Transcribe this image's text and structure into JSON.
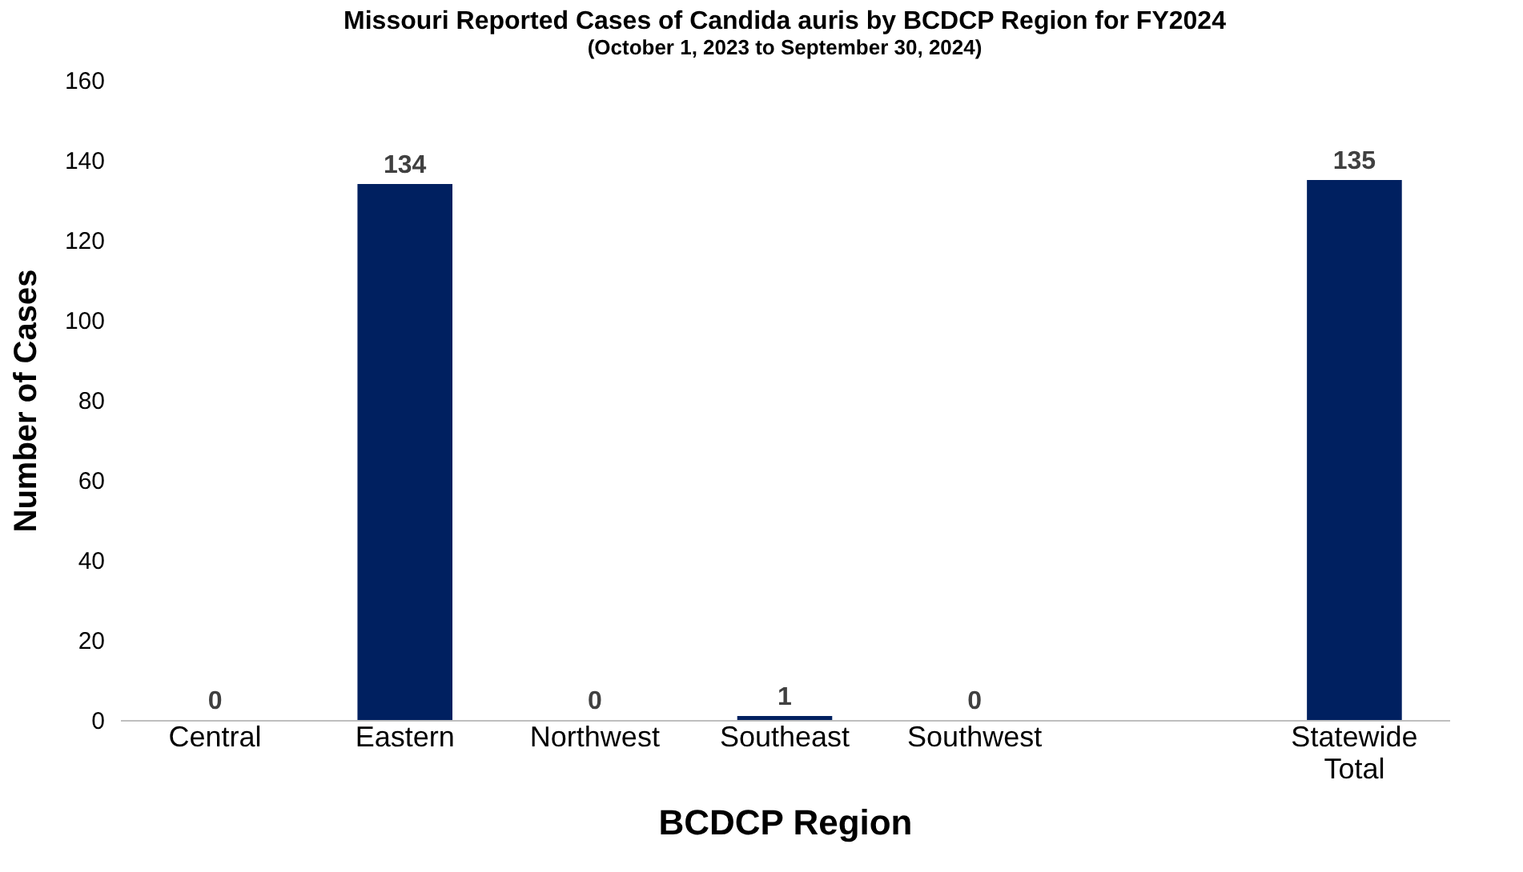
{
  "chart_data": {
    "type": "bar",
    "title": "Missouri Reported Cases of Candida auris by BCDCP Region for FY2024",
    "subtitle": "(October 1, 2023 to September 30, 2024)",
    "xlabel": "BCDCP Region",
    "ylabel": "Number of Cases",
    "categories": [
      "Central",
      "Eastern",
      "Northwest",
      "Southeast",
      "Southwest",
      null,
      "Statewide Total"
    ],
    "values": [
      0,
      134,
      0,
      1,
      0,
      null,
      135
    ],
    "color": "#002060",
    "ylim": [
      0,
      160
    ],
    "yticks": [
      0,
      20,
      40,
      60,
      80,
      100,
      120,
      140,
      160
    ],
    "grid": false,
    "data_labels": true
  }
}
